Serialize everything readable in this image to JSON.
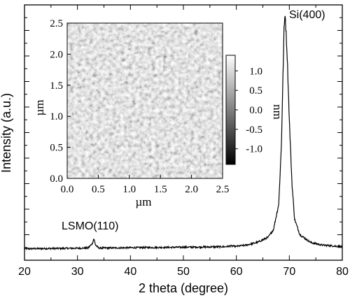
{
  "chart_data": [
    {
      "type": "line",
      "xlabel": "2 theta (degree)",
      "ylabel": "Intensity (a.u.)",
      "xlim": [
        20,
        80
      ],
      "ylim": [
        0,
        100
      ],
      "x_ticks": [
        20,
        30,
        40,
        50,
        60,
        70,
        80
      ],
      "y_ticks_labeled": false,
      "annotations": [
        {
          "text": "LSMO(110)",
          "x": 33.0,
          "y": 7.8
        },
        {
          "text": "Si(400)",
          "x": 69.5,
          "y": 97.5
        }
      ],
      "series": [
        {
          "x": [
            20,
            25,
            30,
            32,
            32.8,
            33.1,
            33.4,
            34,
            36,
            40,
            45,
            50,
            55,
            58,
            59,
            60,
            62,
            64,
            66,
            67,
            68,
            68.5,
            69,
            69.2,
            69.6,
            70,
            70.5,
            71,
            72,
            74,
            76,
            80
          ],
          "y": [
            4.5,
            4.6,
            4.7,
            4.8,
            6.5,
            8.5,
            6.0,
            4.8,
            4.8,
            4.9,
            5.0,
            5.1,
            5.2,
            5.3,
            5.6,
            5.4,
            6.0,
            7.0,
            9.0,
            12.0,
            22.0,
            45.0,
            90.0,
            97.0,
            80.0,
            55.0,
            30.0,
            16.0,
            10.0,
            7.0,
            6.0,
            5.3
          ]
        }
      ]
    },
    {
      "type": "heatmap",
      "xlabel": "µm",
      "ylabel": "µm",
      "xlim": [
        0.0,
        2.5
      ],
      "ylim": [
        0.0,
        2.5
      ],
      "x_ticks": [
        "0.0",
        "0.5",
        "1.0",
        "1.5",
        "2.0",
        "2.5"
      ],
      "y_ticks": [
        "0.0",
        "0.5",
        "1.0",
        "1.5",
        "2.0",
        "2.5"
      ],
      "colorbar": {
        "label": "nm",
        "ticks": [
          "1.0",
          "0.5",
          "0.0",
          "-0.5",
          "-1.0"
        ],
        "tick_values": [
          1.0,
          0.5,
          0.0,
          -0.5,
          -1.0
        ],
        "range": [
          -1.4,
          1.4
        ],
        "colors": [
          "#000000",
          "#ffffff"
        ]
      }
    }
  ]
}
